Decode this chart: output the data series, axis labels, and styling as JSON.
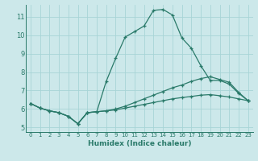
{
  "bg_color": "#cce8ea",
  "grid_color": "#a8d4d6",
  "line_color": "#2a7a6a",
  "xlabel": "Humidex (Indice chaleur)",
  "xlim": [
    -0.5,
    23.5
  ],
  "ylim": [
    4.75,
    11.65
  ],
  "yticks": [
    5,
    6,
    7,
    8,
    9,
    10,
    11
  ],
  "xticks": [
    0,
    1,
    2,
    3,
    4,
    5,
    6,
    7,
    8,
    9,
    10,
    11,
    12,
    13,
    14,
    15,
    16,
    17,
    18,
    19,
    20,
    21,
    22,
    23
  ],
  "line1_x": [
    0,
    1,
    2,
    3,
    4,
    5,
    6,
    7,
    8,
    9,
    10,
    11,
    12,
    13,
    14,
    15,
    16,
    17,
    18,
    19,
    20,
    21,
    22,
    23
  ],
  "line1_y": [
    6.3,
    6.05,
    5.9,
    5.8,
    5.6,
    5.2,
    5.8,
    5.85,
    7.5,
    8.75,
    9.9,
    10.2,
    10.5,
    11.35,
    11.4,
    11.1,
    9.85,
    9.3,
    8.35,
    7.55,
    7.55,
    7.35,
    6.85,
    6.45
  ],
  "line2_x": [
    0,
    1,
    2,
    3,
    4,
    5,
    6,
    7,
    8,
    9,
    10,
    11,
    12,
    13,
    14,
    15,
    16,
    17,
    18,
    19,
    20,
    21,
    22,
    23
  ],
  "line2_y": [
    6.3,
    6.05,
    5.9,
    5.8,
    5.6,
    5.2,
    5.8,
    5.85,
    5.9,
    6.0,
    6.15,
    6.35,
    6.55,
    6.75,
    6.95,
    7.15,
    7.3,
    7.5,
    7.65,
    7.75,
    7.6,
    7.45,
    6.9,
    6.45
  ],
  "line3_x": [
    0,
    1,
    2,
    3,
    4,
    5,
    6,
    7,
    8,
    9,
    10,
    11,
    12,
    13,
    14,
    15,
    16,
    17,
    18,
    19,
    20,
    21,
    22,
    23
  ],
  "line3_y": [
    6.3,
    6.05,
    5.9,
    5.8,
    5.6,
    5.2,
    5.8,
    5.85,
    5.9,
    5.95,
    6.05,
    6.15,
    6.25,
    6.35,
    6.45,
    6.55,
    6.62,
    6.68,
    6.75,
    6.78,
    6.72,
    6.65,
    6.55,
    6.45
  ]
}
